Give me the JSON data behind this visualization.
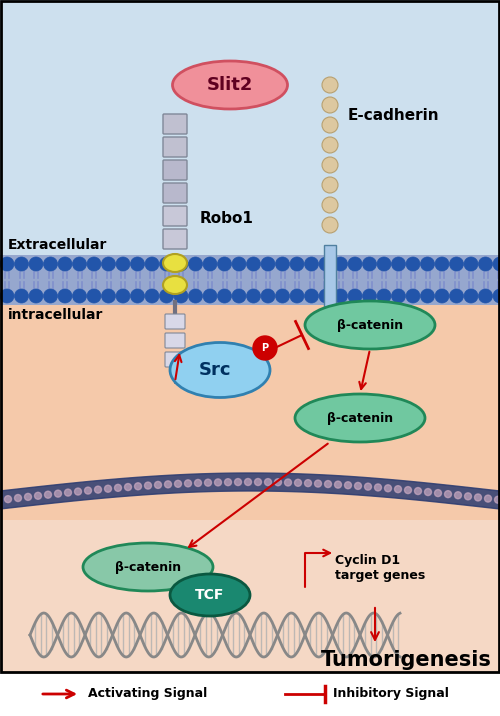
{
  "fig_width": 5.0,
  "fig_height": 7.16,
  "dpi": 100,
  "bg_extracellular": "#cde0ee",
  "bg_intracellular": "#f5c9aa",
  "bg_nuclear": "#f5d8c5",
  "title": "Tumorigenesis",
  "legend_activating": "Activating Signal",
  "legend_inhibitory": "Inhibitory Signal",
  "arrow_color": "#cc0000",
  "slit2_text": "Slit2",
  "robo1_text": "Robo1",
  "ecadherin_text": "E-cadherin",
  "src_text": "Src",
  "bcatenin_text": "β-catenin",
  "tcf_text": "TCF",
  "cyclin_text": "Cyclin D1\ntarget genes",
  "extracellular_text": "Extracellular",
  "intracellular_text": "intracellular",
  "p_label": "P",
  "mem_circle_color": "#2255aa",
  "mem_tail_color": "#8090cc",
  "nuc_mem_color": "#2a3a70",
  "robo_box_color": "#c8c8d8",
  "robo_box_edge": "#808898",
  "robo_yellow": "#e8e040",
  "robo_yellow_edge": "#b0a020",
  "ecad_bead_color": "#ddc8a0",
  "ecad_stem_color": "#a8c8e8",
  "src_color": "#90d0f0",
  "src_edge": "#3080b0",
  "bcat_color": "#70c8a0",
  "bcat_edge": "#208858",
  "bcat_nuclear_color": "#88c8a8",
  "tcf_color": "#1a8870",
  "tcf_edge": "#0a5840",
  "slit2_color": "#f0909a",
  "slit2_edge": "#d05060",
  "dna_color": "#888888",
  "dna_fill": "#cccccc"
}
